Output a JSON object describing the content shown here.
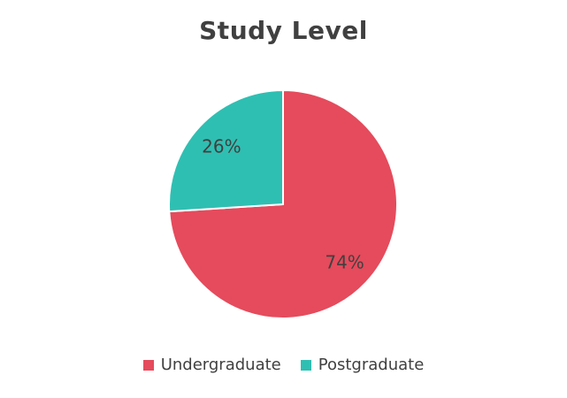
{
  "chart_data": {
    "type": "pie",
    "title": "Study Level",
    "legend_position": "bottom",
    "slices": [
      {
        "label": "Undergraduate",
        "value": 74,
        "display": "74%",
        "color": "#E54B5C"
      },
      {
        "label": "Postgraduate",
        "value": 26,
        "display": "26%",
        "color": "#2FBFB2"
      }
    ]
  }
}
